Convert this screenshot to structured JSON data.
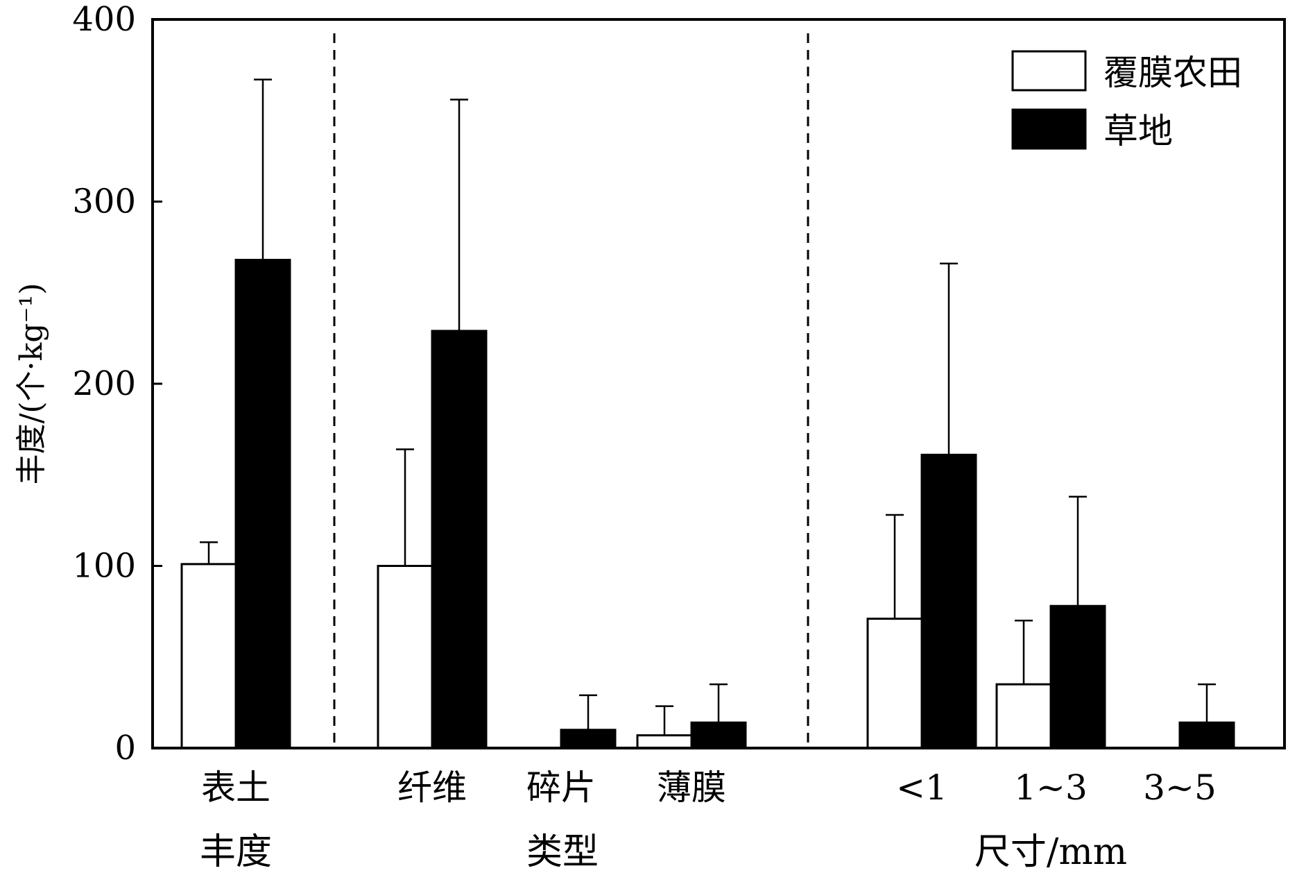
{
  "chart_data": {
    "type": "bar",
    "ylabel": "丰度/(个·kg⁻¹)",
    "ylim": [
      0,
      400
    ],
    "yticks": [
      0,
      100,
      200,
      300,
      400
    ],
    "grid": false,
    "legend_position": "top-right",
    "categories": [
      "表土",
      "纤维",
      "碎片",
      "薄膜",
      "<1",
      "1~3",
      "3~5"
    ],
    "category_groups": [
      {
        "label": "丰度",
        "categories": [
          "表土"
        ],
        "label_prefix": "表土"
      },
      {
        "label": "类型",
        "categories": [
          "纤维",
          "碎片",
          "薄膜"
        ]
      },
      {
        "label": "尺寸/mm",
        "categories": [
          "<1",
          "1~3",
          "3~5"
        ]
      }
    ],
    "series": [
      {
        "name": "覆膜农田",
        "fill": "#ffffff",
        "values": [
          101,
          100,
          0,
          7,
          71,
          35,
          0
        ],
        "errors": [
          12,
          64,
          0,
          16,
          57,
          35,
          0
        ]
      },
      {
        "name": "草地",
        "fill": "#000000",
        "values": [
          268,
          229,
          10,
          14,
          161,
          78,
          14
        ],
        "errors": [
          99,
          127,
          19,
          21,
          105,
          60,
          21
        ]
      }
    ]
  }
}
